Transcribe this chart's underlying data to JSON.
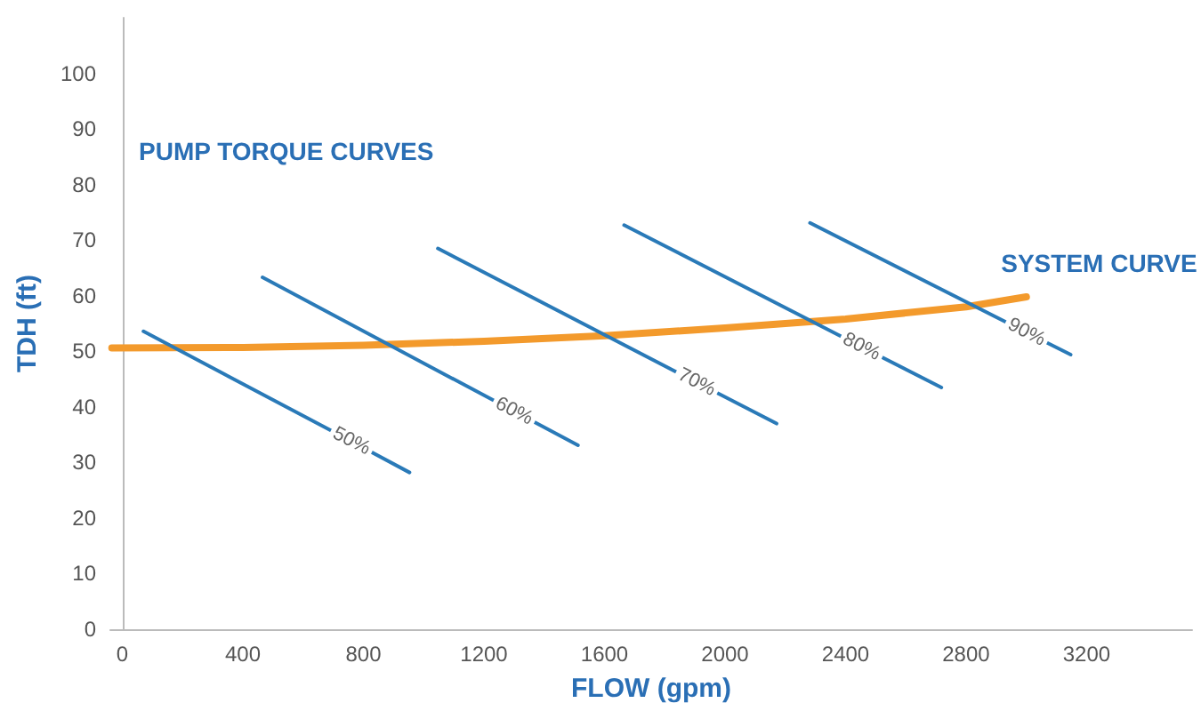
{
  "chart_data": {
    "type": "line",
    "xlabel": "FLOW (gpm)",
    "ylabel": "TDH (ft)",
    "annotations": [
      "PUMP TORQUE CURVES",
      {
        "text": "SYSTEM CURVE",
        "x": 3000,
        "y": 59.8
      }
    ],
    "xlim": [
      -40,
      3550
    ],
    "ylim": [
      0,
      110
    ],
    "xticks": [
      0,
      400,
      800,
      1200,
      1600,
      2000,
      2400,
      2800,
      3200
    ],
    "yticks": [
      0,
      10,
      20,
      30,
      40,
      50,
      60,
      70,
      80,
      90,
      100
    ],
    "grid": false,
    "legend": false,
    "marker": "none",
    "line_style": "solid",
    "series": [
      {
        "color": "#f39a2c",
        "x": [
          -35,
          400,
          800,
          1200,
          1600,
          2000,
          2400,
          2800,
          3000
        ],
        "values": [
          50.6,
          50.7,
          51.1,
          51.8,
          52.8,
          54.2,
          55.8,
          58,
          59.8
        ]
      },
      {
        "name": "50%",
        "color": "#2a7ab8",
        "x": [
          70,
          760,
          953
        ],
        "values": [
          53.6,
          33.8,
          28.2
        ]
      },
      {
        "name": "60%",
        "color": "#2a7ab8",
        "x": [
          465,
          1300,
          1512
        ],
        "values": [
          63.3,
          39.2,
          33.1
        ]
      },
      {
        "name": "70%",
        "color": "#2a7ab8",
        "x": [
          1047,
          1906,
          2171
        ],
        "values": [
          68.5,
          44.4,
          37.0
        ]
      },
      {
        "name": "80%",
        "color": "#2a7ab8",
        "x": [
          1665,
          2453,
          2718
        ],
        "values": [
          72.7,
          50.8,
          43.5
        ]
      },
      {
        "name": "90%",
        "color": "#2a7ab8",
        "x": [
          2282,
          3000,
          3147
        ],
        "values": [
          73.1,
          53.4,
          49.4
        ]
      }
    ]
  }
}
